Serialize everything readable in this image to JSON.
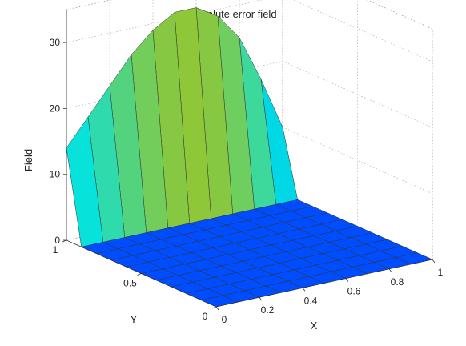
{
  "chart_data": {
    "type": "surface",
    "title": "Absolute error field",
    "xlabel": "X",
    "ylabel": "Y",
    "zlabel": "Field",
    "xlim": [
      0,
      1
    ],
    "ylim": [
      0,
      1
    ],
    "zlim": [
      0,
      35
    ],
    "grid": true,
    "colormap": "jet",
    "x_ticks": [
      "0",
      "0.2",
      "0.4",
      "0.6",
      "0.8",
      "1"
    ],
    "y_ticks": [
      "0",
      "0.5",
      "1"
    ],
    "z_ticks": [
      "0",
      "10",
      "20",
      "30"
    ],
    "x": [
      0,
      0.1,
      0.2,
      0.3,
      0.4,
      0.5,
      0.6,
      0.7,
      0.8,
      0.9,
      1.0
    ],
    "y": [
      0,
      0.1,
      0.2,
      0.3,
      0.4,
      0.5,
      0.6,
      0.7,
      0.8,
      0.9,
      1.0
    ],
    "z": [
      [
        0,
        0,
        0,
        0,
        0,
        0,
        0,
        0,
        0,
        0,
        0
      ],
      [
        0,
        0,
        0,
        0,
        0,
        0,
        0,
        0,
        0,
        0,
        0
      ],
      [
        0,
        0,
        0,
        0,
        0,
        0,
        0,
        0,
        0,
        0,
        0
      ],
      [
        0,
        0,
        0,
        0,
        0,
        0,
        0,
        0,
        0,
        0,
        0
      ],
      [
        0,
        0,
        0,
        0,
        0,
        0,
        0,
        0,
        0,
        0,
        0
      ],
      [
        0,
        0,
        0,
        0,
        0,
        0,
        0,
        0,
        0,
        0,
        0
      ],
      [
        0,
        0,
        0,
        0,
        0,
        0,
        0,
        0,
        0,
        0,
        0
      ],
      [
        0,
        0,
        0,
        0,
        0,
        0,
        0,
        0,
        0,
        0,
        0
      ],
      [
        0,
        0,
        0,
        0,
        0,
        0,
        0,
        0,
        0,
        0,
        0
      ],
      [
        0,
        0,
        0,
        0,
        0,
        0,
        0,
        0,
        0,
        0,
        0
      ],
      [
        14,
        18,
        22,
        26,
        29,
        31,
        31,
        29,
        25,
        18,
        10
      ]
    ],
    "colors": {
      "jet": [
        "#00008f",
        "#0000ff",
        "#00ffff",
        "#ffff00",
        "#ff0000",
        "#800000"
      ]
    }
  }
}
